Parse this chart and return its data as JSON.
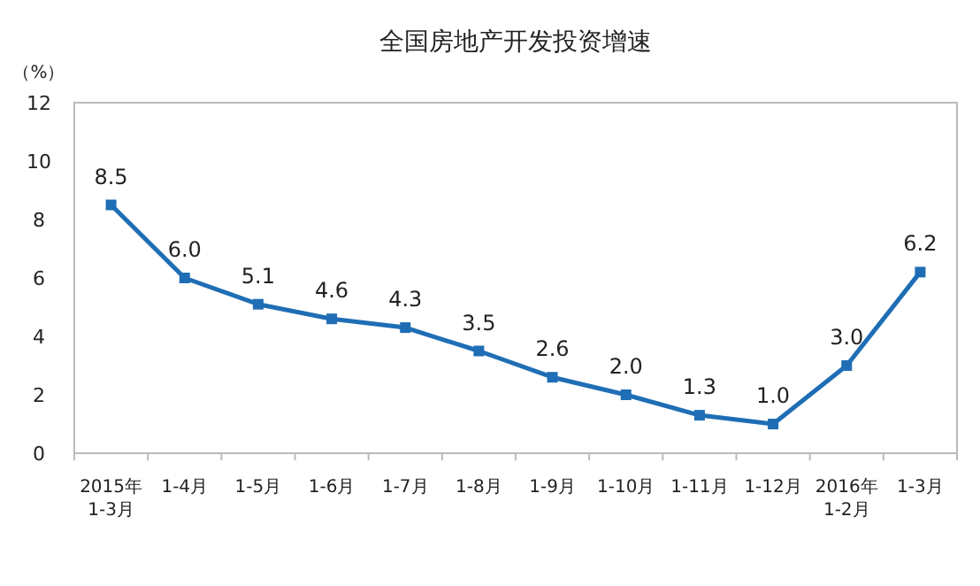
{
  "chart_data": {
    "type": "line",
    "title": "全国房地产开发投资增速",
    "ylabel": "（%）",
    "categories": [
      "2015年\n1-3月",
      "1-4月",
      "1-5月",
      "1-6月",
      "1-7月",
      "1-8月",
      "1-9月",
      "1-10月",
      "1-11月",
      "1-12月",
      "2016年\n1-2月",
      "1-3月"
    ],
    "series": [
      {
        "color": "#1f6eb5",
        "values": [
          8.5,
          6.0,
          5.1,
          4.6,
          4.3,
          3.5,
          2.6,
          2.0,
          1.3,
          1.0,
          3.0,
          6.2
        ]
      }
    ],
    "value_labels": [
      "8.5",
      "6.0",
      "5.1",
      "4.6",
      "4.3",
      "3.5",
      "2.6",
      "2.0",
      "1.3",
      "1.0",
      "3.0",
      "6.2"
    ],
    "ylim": [
      0,
      12
    ],
    "yticks": [
      0,
      2,
      4,
      6,
      8,
      10,
      12
    ],
    "marker": "square",
    "line_style": "solid"
  }
}
